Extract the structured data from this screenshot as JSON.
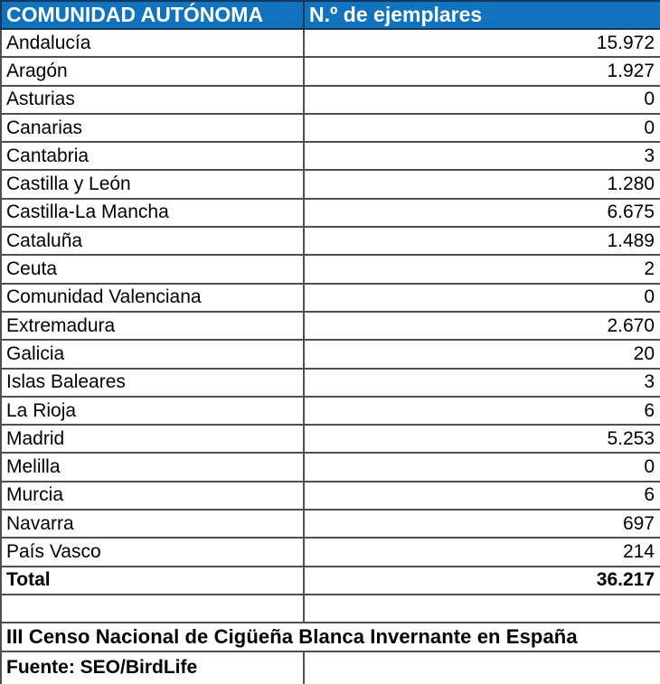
{
  "colors": {
    "header_bg": "#1173BE",
    "header_text": "#FFFFFF",
    "header_border": "#14365C",
    "grid": "#4F4F4F",
    "text": "#000000",
    "background": "#FFFFFF"
  },
  "table": {
    "header": {
      "region": "COMUNIDAD AUTÓNOMA",
      "count": "N.º de ejemplares"
    },
    "rows": [
      {
        "region": "Andalucía",
        "value": "15.972"
      },
      {
        "region": "Aragón",
        "value": "1.927"
      },
      {
        "region": "Asturias",
        "value": "0"
      },
      {
        "region": "Canarias",
        "value": "0"
      },
      {
        "region": "Cantabria",
        "value": "3"
      },
      {
        "region": "Castilla y León",
        "value": "1.280"
      },
      {
        "region": "Castilla-La Mancha",
        "value": "6.675"
      },
      {
        "region": "Cataluña",
        "value": "1.489"
      },
      {
        "region": "Ceuta",
        "value": "2"
      },
      {
        "region": "Comunidad Valenciana",
        "value": "0"
      },
      {
        "region": "Extremadura",
        "value": "2.670"
      },
      {
        "region": "Galicia",
        "value": "20"
      },
      {
        "region": "Islas Baleares",
        "value": "3"
      },
      {
        "region": "La Rioja",
        "value": "6"
      },
      {
        "region": "Madrid",
        "value": "5.253"
      },
      {
        "region": "Melilla",
        "value": "0"
      },
      {
        "region": "Murcia",
        "value": "6"
      },
      {
        "region": "Navarra",
        "value": "697"
      },
      {
        "region": "País Vasco",
        "value": "214"
      }
    ],
    "total": {
      "label": "Total",
      "value": "36.217"
    }
  },
  "footer": {
    "title": "III Censo Nacional de Cigüeña Blanca Invernante en España",
    "source": "Fuente: SEO/BirdLife"
  },
  "chart_data": {
    "type": "table",
    "title": "III Censo Nacional de Cigüeña Blanca Invernante en España",
    "source": "Fuente: SEO/BirdLife",
    "columns": [
      "COMUNIDAD AUTÓNOMA",
      "N.º de ejemplares"
    ],
    "categories": [
      "Andalucía",
      "Aragón",
      "Asturias",
      "Canarias",
      "Cantabria",
      "Castilla y León",
      "Castilla-La Mancha",
      "Cataluña",
      "Ceuta",
      "Comunidad Valenciana",
      "Extremadura",
      "Galicia",
      "Islas Baleares",
      "La Rioja",
      "Madrid",
      "Melilla",
      "Murcia",
      "Navarra",
      "País Vasco"
    ],
    "values": [
      15972,
      1927,
      0,
      0,
      3,
      1280,
      6675,
      1489,
      2,
      0,
      2670,
      20,
      3,
      6,
      5253,
      0,
      6,
      697,
      214
    ],
    "total": 36217
  }
}
